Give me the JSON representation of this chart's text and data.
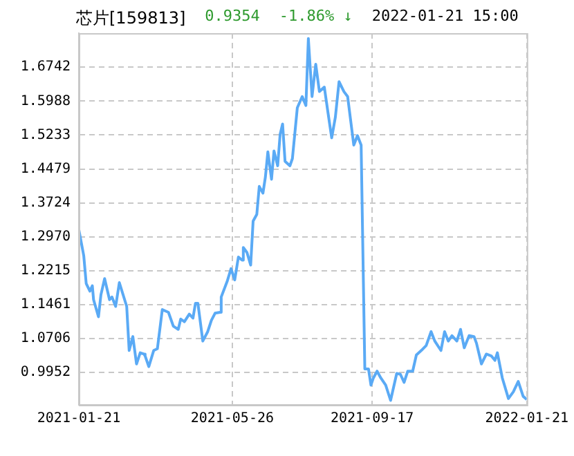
{
  "chart_data": {
    "type": "line",
    "title": "芯片[159813]",
    "annotations": [
      "0.9354",
      "-1.86% ↓",
      "2022-01-21 15:00"
    ],
    "x": [
      "2021-01-21",
      "2021-01-25",
      "2021-01-27",
      "2021-01-30",
      "2021-02-01",
      "2021-02-02",
      "2021-02-06",
      "2021-02-08",
      "2021-02-11",
      "2021-02-15",
      "2021-02-17",
      "2021-02-20",
      "2021-02-23",
      "2021-03-01",
      "2021-03-03",
      "2021-03-06",
      "2021-03-09",
      "2021-03-12",
      "2021-03-15",
      "2021-03-16",
      "2021-03-19",
      "2021-03-23",
      "2021-03-26",
      "2021-03-30",
      "2021-04-04",
      "2021-04-08",
      "2021-04-12",
      "2021-04-14",
      "2021-04-17",
      "2021-04-21",
      "2021-04-24",
      "2021-04-26",
      "2021-04-28",
      "2021-05-02",
      "2021-05-06",
      "2021-05-09",
      "2021-05-12",
      "2021-05-16",
      "2021-05-17",
      "2021-05-22",
      "2021-05-25",
      "2021-05-28",
      "2021-05-31",
      "2021-06-03",
      "2021-06-04",
      "2021-06-07",
      "2021-06-10",
      "2021-06-12",
      "2021-06-15",
      "2021-06-17",
      "2021-06-20",
      "2021-06-22",
      "2021-06-24",
      "2021-06-27",
      "2021-06-29",
      "2021-07-02",
      "2021-07-04",
      "2021-07-06",
      "2021-07-08",
      "2021-07-12",
      "2021-07-14",
      "2021-07-18",
      "2021-07-22",
      "2021-07-25",
      "2021-07-27",
      "2021-07-30",
      "2021-08-02",
      "2021-08-05",
      "2021-08-09",
      "2021-08-12",
      "2021-08-15",
      "2021-08-18",
      "2021-08-21",
      "2021-08-25",
      "2021-08-28",
      "2021-09-02",
      "2021-09-05",
      "2021-09-08",
      "2021-09-11",
      "2021-09-14",
      "2021-09-16",
      "2021-09-18",
      "2021-09-21",
      "2021-09-24",
      "2021-09-28",
      "2021-10-02",
      "2021-10-07",
      "2021-10-10",
      "2021-10-13",
      "2021-10-16",
      "2021-10-20",
      "2021-10-23",
      "2021-10-27",
      "2021-10-31",
      "2021-11-04",
      "2021-11-07",
      "2021-11-12",
      "2021-11-15",
      "2021-11-18",
      "2021-11-21",
      "2021-11-25",
      "2021-11-28",
      "2021-12-01",
      "2021-12-05",
      "2021-12-09",
      "2021-12-11",
      "2021-12-15",
      "2021-12-19",
      "2021-12-23",
      "2021-12-26",
      "2021-12-28",
      "2022-01-01",
      "2022-01-06",
      "2022-01-10",
      "2022-01-14",
      "2022-01-18",
      "2022-01-21"
    ],
    "series": [
      {
        "color": "#5aaaf5",
        "values": [
          1.313,
          1.255,
          1.193,
          1.176,
          1.188,
          1.157,
          1.119,
          1.168,
          1.204,
          1.157,
          1.163,
          1.142,
          1.195,
          1.142,
          1.044,
          1.075,
          1.014,
          1.039,
          1.036,
          1.032,
          1.008,
          1.044,
          1.048,
          1.135,
          1.129,
          1.098,
          1.091,
          1.114,
          1.108,
          1.125,
          1.116,
          1.149,
          1.149,
          1.065,
          1.086,
          1.111,
          1.127,
          1.129,
          1.163,
          1.199,
          1.226,
          1.201,
          1.252,
          1.245,
          1.273,
          1.262,
          1.234,
          1.332,
          1.347,
          1.409,
          1.394,
          1.43,
          1.486,
          1.425,
          1.488,
          1.455,
          1.525,
          1.548,
          1.465,
          1.455,
          1.471,
          1.584,
          1.609,
          1.589,
          1.738,
          1.609,
          1.681,
          1.62,
          1.63,
          1.573,
          1.517,
          1.563,
          1.642,
          1.62,
          1.609,
          1.501,
          1.522,
          1.501,
          1.003,
          1.003,
          0.967,
          0.983,
          0.998,
          0.983,
          0.967,
          0.933,
          0.993,
          0.991,
          0.973,
          0.998,
          0.998,
          1.034,
          1.044,
          1.055,
          1.086,
          1.065,
          1.044,
          1.086,
          1.065,
          1.077,
          1.065,
          1.091,
          1.05,
          1.077,
          1.075,
          1.06,
          1.014,
          1.036,
          1.032,
          1.022,
          1.039,
          0.983,
          0.937,
          0.952,
          0.975,
          0.942,
          0.935
        ]
      }
    ],
    "xlim": [
      "2021-01-21",
      "2022-01-21"
    ],
    "xticks": [
      "2021-01-21",
      "2021-05-26",
      "2021-09-17",
      "2022-01-21"
    ],
    "ylim": [
      0.923,
      1.75
    ],
    "yticks": [
      0.9952,
      1.0706,
      1.1461,
      1.2215,
      {
        "value": 1.297,
        "label": "1.2970"
      },
      1.3724,
      1.4479,
      1.5233,
      1.5988,
      1.6742
    ],
    "grid": true,
    "legend": false
  }
}
